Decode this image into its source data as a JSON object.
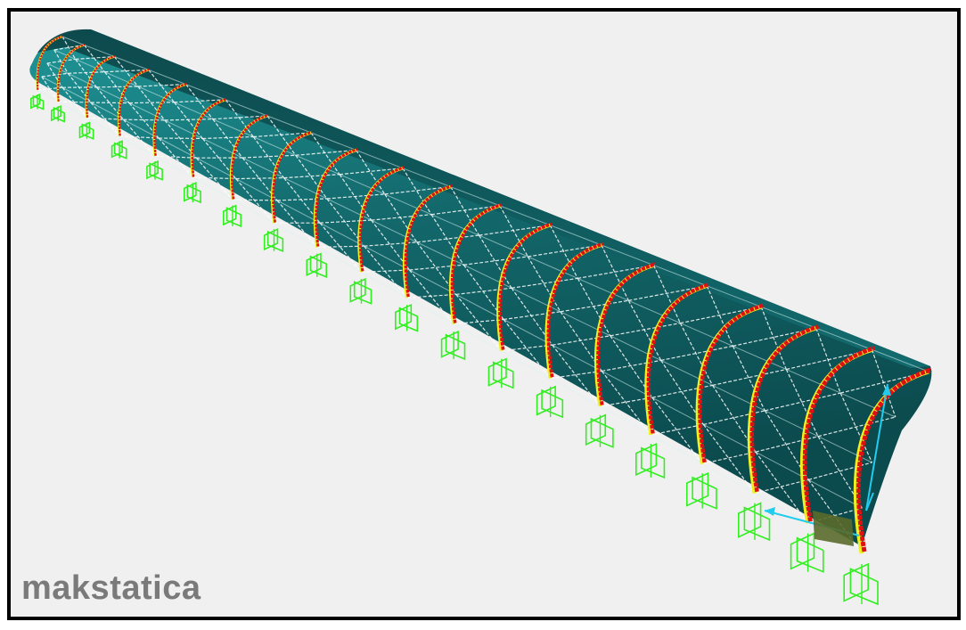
{
  "watermark": {
    "text": "makstatica"
  },
  "scene": {
    "subject": "3d-structural-model",
    "view": "perspective",
    "colors": {
      "background": "#f0f0f0",
      "frame": "#000000",
      "shell_dark": "#0c4f52",
      "shell_light": "#1c8a8c",
      "mesh": "#ffffff",
      "arch_rib": "#e01010",
      "arch_edge": "#f0f020",
      "support": "#33ee22",
      "axis": "#22ccee",
      "load_patch": "#5a6a2a",
      "watermark": "#7a7a7a"
    },
    "rib_count": 20,
    "support_count": 20
  }
}
